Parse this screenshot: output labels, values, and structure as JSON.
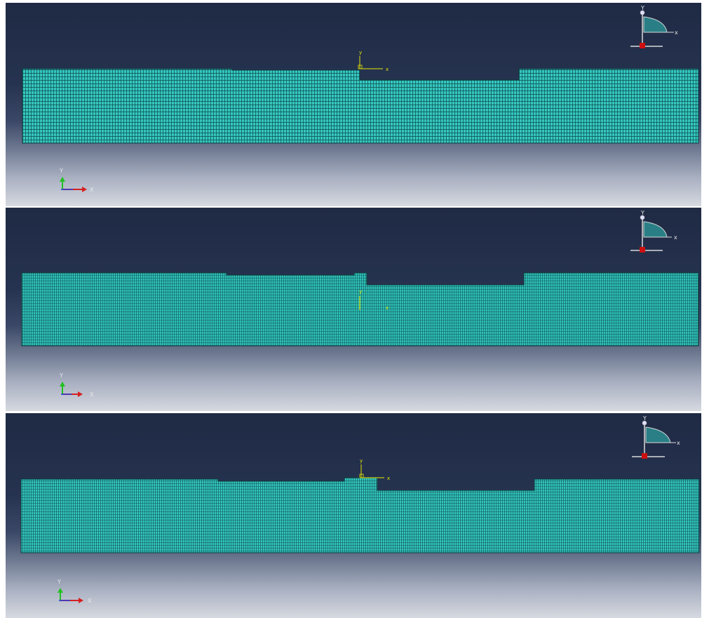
{
  "viewports": [
    {
      "id": "mesh-view-1",
      "mesh_color": "#35c7c0",
      "origin_labels": {
        "x": "x",
        "y": "y"
      },
      "triad_labels": {
        "x": "X",
        "y": "Y"
      },
      "view_cube_labels": {
        "x": "x",
        "y": "Y"
      }
    },
    {
      "id": "mesh-view-2",
      "mesh_color": "#2fbfb7",
      "origin_labels": {
        "x": "x",
        "y": "y"
      },
      "triad_labels": {
        "x": "X",
        "y": "Y"
      },
      "view_cube_labels": {
        "x": "x",
        "y": "Y"
      }
    },
    {
      "id": "mesh-view-3",
      "mesh_color": "#33c4bd",
      "origin_labels": {
        "x": "x",
        "y": "y"
      },
      "triad_labels": {
        "x": "X",
        "y": "Y"
      },
      "view_cube_labels": {
        "x": "x",
        "y": "Y"
      }
    }
  ],
  "colors": {
    "background_top": "#1f2a44",
    "background_bottom": "#d6d9e0",
    "origin_axis": "#e6e600",
    "triad_x": "#d62020",
    "triad_y": "#22c022",
    "triad_z": "#2040e0",
    "view_cube_fill": "#2a7f86"
  }
}
